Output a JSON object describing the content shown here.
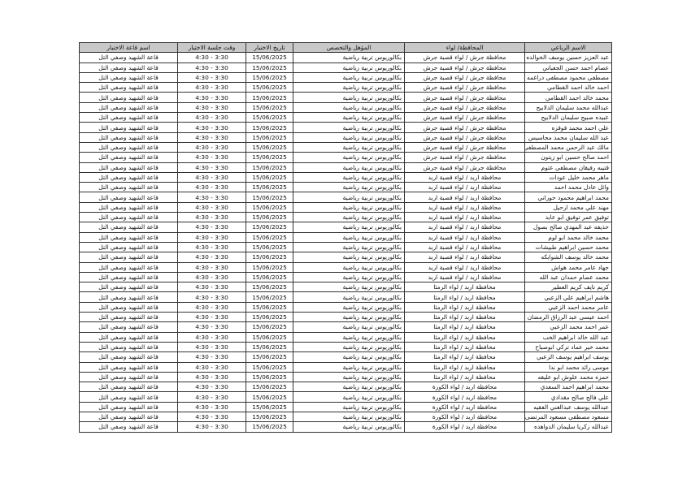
{
  "headers": {
    "name": "الاسم الرباعي",
    "governorate": "المحافظة/ لواء",
    "qualification": "المؤهل والتخصص",
    "date": "تاريخ الاختبار",
    "time": "وقت جلسة الاختبار",
    "hall": "اسم قاعة الاختبار"
  },
  "rows": [
    {
      "name": "عبد العزيز حسين يوسف الخوالده",
      "governorate": "محافظة جرش / لواء قصبة جرش",
      "qualification": "بكالوريوس تربية رياضية",
      "date": "15/06/2025",
      "time": "3:30 - 4:30",
      "hall": "قاعة الشهيد وصفي التل"
    },
    {
      "name": "عصام احمد حسن الجعباني",
      "governorate": "محافظة جرش / لواء قصبة جرش",
      "qualification": "بكالوريوس تربية رياضية",
      "date": "15/06/2025",
      "time": "3:30 - 4:30",
      "hall": "قاعة الشهيد وصفي التل"
    },
    {
      "name": "مصطفى محمود مصطفى دراغمه",
      "governorate": "محافظة جرش / لواء قصبة جرش",
      "qualification": "بكالوريوس تربية رياضية",
      "date": "15/06/2025",
      "time": "3:30 - 4:30",
      "hall": "قاعة الشهيد وصفي التل"
    },
    {
      "name": "احمد خالد احمد القطامي",
      "governorate": "محافظة جرش / لواء قصبة جرش",
      "qualification": "بكالوريوس تربية رياضية",
      "date": "15/06/2025",
      "time": "3:30 - 4:30",
      "hall": "قاعة الشهيد وصفي التل"
    },
    {
      "name": "محمد خالد احمد القطامي",
      "governorate": "محافظة جرش / لواء قصبة جرش",
      "qualification": "بكالوريوس تربية رياضية",
      "date": "15/06/2025",
      "time": "3:30 - 4:30",
      "hall": "قاعة الشهيد وصفي التل"
    },
    {
      "name": "عبدالله محمد سليمان الدلابيح",
      "governorate": "محافظة جرش / لواء قصبة جرش",
      "qualification": "بكالوريوس تربية رياضية",
      "date": "15/06/2025",
      "time": "3:30 - 4:30",
      "hall": "قاعة الشهيد وصفي التل"
    },
    {
      "name": "عبيده صبيح سليمان الدلابيح",
      "governorate": "محافظة جرش / لواء قصبة جرش",
      "qualification": "بكالوريوس تربية رياضية",
      "date": "15/06/2025",
      "time": "3:30 - 4:30",
      "hall": "قاعة الشهيد وصفي التل"
    },
    {
      "name": "علي احمد محمد قوقزه",
      "governorate": "محافظة جرش / لواء قصبة جرش",
      "qualification": "بكالوريوس تربية رياضية",
      "date": "15/06/2025",
      "time": "3:30 - 4:30",
      "hall": "قاعة الشهيد وصفي التل"
    },
    {
      "name": "عبد الله سليمان محمد محاسيس",
      "governorate": "محافظة جرش / لواء قصبة جرش",
      "qualification": "بكالوريوس تربية رياضية",
      "date": "15/06/2025",
      "time": "3:30 - 4:30",
      "hall": "قاعة الشهيد وصفي التل"
    },
    {
      "name": "مالك عبد الرحمن محمد المصطفى",
      "governorate": "محافظة جرش / لواء قصبة جرش",
      "qualification": "بكالوريوس تربية رياضية",
      "date": "15/06/2025",
      "time": "3:30 - 4:30",
      "hall": "قاعة الشهيد وصفي التل"
    },
    {
      "name": "احمد صالح حسين ابو زيتون",
      "governorate": "محافظة جرش / لواء قصبة جرش",
      "qualification": "بكالوريوس تربية رياضية",
      "date": "15/06/2025",
      "time": "3:30 - 4:30",
      "hall": "قاعة الشهيد وصفي التل"
    },
    {
      "name": "قتيبه رفيقان مصطفى عتوم",
      "governorate": "محافظة جرش / لواء قصبة جرش",
      "qualification": "بكالوريوس تربية رياضية",
      "date": "15/06/2025",
      "time": "3:30 - 4:30",
      "hall": "قاعة الشهيد وصفي التل"
    },
    {
      "name": "ماهر محمد خليل عودات",
      "governorate": "محافظة اربد / لواء قصبة اربد",
      "qualification": "بكالوريوس تربية رياضية",
      "date": "15/06/2025",
      "time": "3:30 - 4:30",
      "hall": "قاعة الشهيد وصفي التل"
    },
    {
      "name": "وائل عادل محمد احمد",
      "governorate": "محافظة اربد / لواء قصبة اربد",
      "qualification": "بكالوريوس تربية رياضية",
      "date": "15/06/2025",
      "time": "3:30 - 4:30",
      "hall": "قاعة الشهيد وصفي التل"
    },
    {
      "name": "محمد ابراهيم محمود حوراني",
      "governorate": "محافظة اربد / لواء قصبة اربد",
      "qualification": "بكالوريوس تربية رياضية",
      "date": "15/06/2025",
      "time": "3:30 - 4:30",
      "hall": "قاعة الشهيد وصفي التل"
    },
    {
      "name": "مهند علي محمد ارحيل",
      "governorate": "محافظة اربد / لواء قصبة اربد",
      "qualification": "بكالوريوس تربية رياضية",
      "date": "15/06/2025",
      "time": "3:30 - 4:30",
      "hall": "قاعة الشهيد وصفي التل"
    },
    {
      "name": "توفيق عمر توفيق ابو عابد",
      "governorate": "محافظة اربد / لواء قصبة اربد",
      "qualification": "بكالوريوس تربية رياضية",
      "date": "15/06/2025",
      "time": "3:30 - 4:30",
      "hall": "قاعة الشهيد وصفي التل"
    },
    {
      "name": "حذيفه عبد المهدي صالح بصول",
      "governorate": "محافظة اربد / لواء قصبة اربد",
      "qualification": "بكالوريوس تربية رياضية",
      "date": "15/06/2025",
      "time": "3:30 - 4:30",
      "hall": "قاعة الشهيد وصفي التل"
    },
    {
      "name": "محمد خالد محمد ابو لوم",
      "governorate": "محافظة اربد / لواء قصبة اربد",
      "qualification": "بكالوريوس تربية رياضية",
      "date": "15/06/2025",
      "time": "3:30 - 4:30",
      "hall": "قاعة الشهيد وصفي التل"
    },
    {
      "name": "محمد حسين ابراهيم طبيشات",
      "governorate": "محافظة اربد / لواء قصبة اربد",
      "qualification": "بكالوريوس تربية رياضية",
      "date": "15/06/2025",
      "time": "3:30 - 4:30",
      "hall": "قاعة الشهيد وصفي التل"
    },
    {
      "name": "محمد خالد يوسف الشوابكه",
      "governorate": "محافظة اربد / لواء قصبة اربد",
      "qualification": "بكالوريوس تربية رياضية",
      "date": "15/06/2025",
      "time": "3:30 - 4:30",
      "hall": "قاعة الشهيد وصفي التل"
    },
    {
      "name": "جهاد عامر محمد هواش",
      "governorate": "محافظة اربد / لواء قصبة اربد",
      "qualification": "بكالوريوس تربية رياضية",
      "date": "15/06/2025",
      "time": "3:30 - 4:30",
      "hall": "قاعة الشهيد وصفي التل"
    },
    {
      "name": "محمد عصام حمدان عبد الله",
      "governorate": "محافظة اربد / لواء قصبة اربد",
      "qualification": "بكالوريوس تربية رياضية",
      "date": "15/06/2025",
      "time": "3:30 - 4:30",
      "hall": "قاعة الشهيد وصفي التل"
    },
    {
      "name": "كريم نايف كريم العطير",
      "governorate": "محافظة اربد /  لواء الرمثا",
      "qualification": "بكالوريوس تربية رياضية",
      "date": "15/06/2025",
      "time": "3:30 - 4:30",
      "hall": "قاعة الشهيد وصفي التل"
    },
    {
      "name": "هاشم ابراهيم علي الزعبي",
      "governorate": "محافظة اربد /  لواء الرمثا",
      "qualification": "بكالوريوس تربية رياضية",
      "date": "15/06/2025",
      "time": "3:30 - 4:30",
      "hall": "قاعة الشهيد وصفي التل"
    },
    {
      "name": "عامر محمد احمد الزعبي",
      "governorate": "محافظة اربد /  لواء الرمثا",
      "qualification": "بكالوريوس تربية رياضية",
      "date": "15/06/2025",
      "time": "3:30 - 4:30",
      "hall": "قاعة الشهيد وصفي التل"
    },
    {
      "name": "احمد عيسى عبد الرزاق الرمضان",
      "governorate": "محافظة اربد /  لواء الرمثا",
      "qualification": "بكالوريوس تربية رياضية",
      "date": "15/06/2025",
      "time": "3:30 - 4:30",
      "hall": "قاعة الشهيد وصفي التل"
    },
    {
      "name": "عمر احمد محمد الزعبي",
      "governorate": "محافظة اربد /  لواء الرمثا",
      "qualification": "بكالوريوس تربية رياضية",
      "date": "15/06/2025",
      "time": "3:30 - 4:30",
      "hall": "قاعة الشهيد وصفي التل"
    },
    {
      "name": "عبد الله خالد ابراهيم الخب",
      "governorate": "محافظة اربد /  لواء الرمثا",
      "qualification": "بكالوريوس تربية رياضية",
      "date": "15/06/2025",
      "time": "3:30 - 4:30",
      "hall": "قاعة الشهيد وصفي التل"
    },
    {
      "name": "محمد خير عماد تركي ابوصباح",
      "governorate": "محافظة اربد /  لواء الرمثا",
      "qualification": "بكالوريوس تربية رياضية",
      "date": "15/06/2025",
      "time": "3:30 - 4:30",
      "hall": "قاعة الشهيد وصفي التل"
    },
    {
      "name": "يوسف ابراهيم يوسف الزعبي",
      "governorate": "محافظة اربد /  لواء الرمثا",
      "qualification": "بكالوريوس تربية رياضية",
      "date": "15/06/2025",
      "time": "3:30 - 4:30",
      "hall": "قاعة الشهيد وصفي التل"
    },
    {
      "name": "موسى رائد محمد ابو ندا",
      "governorate": "محافظة اربد /  لواء الرمثا",
      "qualification": "بكالوريوس تربية رياضية",
      "date": "15/06/2025",
      "time": "3:30 - 4:30",
      "hall": "قاعة الشهيد وصفي التل"
    },
    {
      "name": "حمزه محمد علوش ابو عليقه",
      "governorate": "محافظة اربد /  لواء الرمثا",
      "qualification": "بكالوريوس تربية رياضية",
      "date": "15/06/2025",
      "time": "3:30 - 4:30",
      "hall": "قاعة الشهيد وصفي التل"
    },
    {
      "name": "محمد ابراهيم احمد السعدي",
      "governorate": "محافظة اربد / لواء الكورة",
      "qualification": "بكالوريوس تربية رياضية",
      "date": "15/06/2025",
      "time": "3:30 - 4:30",
      "hall": "قاعة الشهيد وصفي التل"
    },
    {
      "name": "علي فالح صالح مقدادي",
      "governorate": "محافظة اربد / لواء الكورة",
      "qualification": "بكالوريوس تربية رياضية",
      "date": "15/06/2025",
      "time": "3:30 - 4:30",
      "hall": "قاعة الشهيد وصفي التل"
    },
    {
      "name": "عبدالله يوسف عبدالغني الفقيه",
      "governorate": "محافظة اربد / لواء الكورة",
      "qualification": "بكالوريوس تربية رياضية",
      "date": "15/06/2025",
      "time": "3:30 - 4:30",
      "hall": "قاعة الشهيد وصفي التل"
    },
    {
      "name": "مسعود مصطفى مسعود المرتضى",
      "governorate": "محافظة اربد / لواء الكورة",
      "qualification": "بكالوريوس تربية رياضية",
      "date": "15/06/2025",
      "time": "3:30 - 4:30",
      "hall": "قاعة الشهيد وصفي التل"
    },
    {
      "name": "عبدالله زكريا سليمان الدواهده",
      "governorate": "محافظة اربد / لواء الكورة",
      "qualification": "بكالوريوس تربية رياضية",
      "date": "15/06/2025",
      "time": "3:30 - 4:30",
      "hall": "قاعة الشهيد وصفي التل"
    }
  ]
}
